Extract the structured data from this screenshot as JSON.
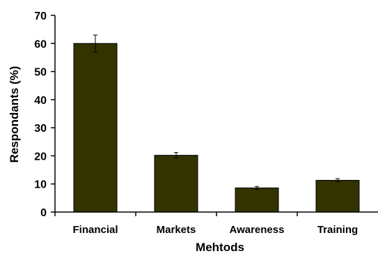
{
  "chart_data": {
    "type": "bar",
    "title": "",
    "xlabel": "Mehtods",
    "ylabel": "Respondants (%)",
    "categories": [
      "Financial",
      "Markets",
      "Awareness",
      "Training"
    ],
    "values": [
      60,
      20.2,
      8.6,
      11.3
    ],
    "error": [
      3.0,
      1.0,
      0.5,
      0.6
    ],
    "ylim": [
      0,
      70
    ],
    "yticks": [
      "0",
      "10",
      "20",
      "30",
      "40",
      "50",
      "60",
      "70"
    ],
    "grid": false,
    "legend": "none",
    "bar_color": "#333300"
  }
}
